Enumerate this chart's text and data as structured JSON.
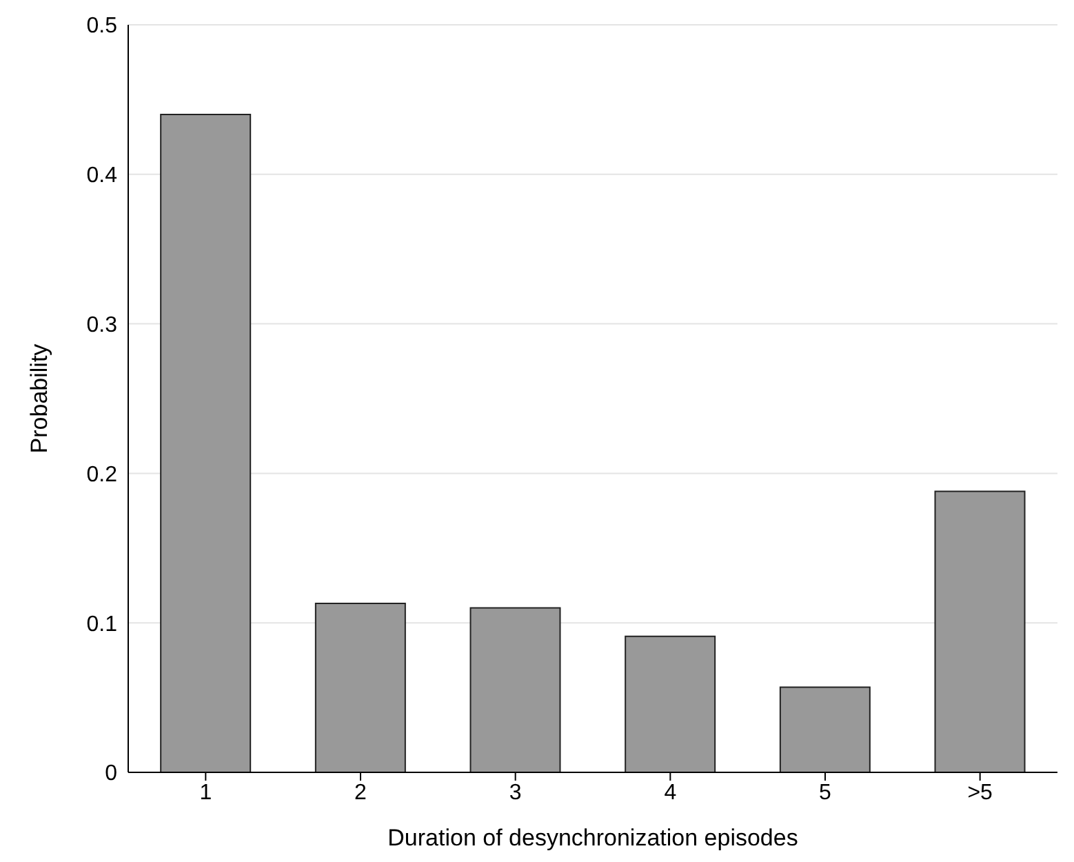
{
  "chart_data": {
    "type": "bar",
    "xlabel": "Duration of desynchronization episodes",
    "ylabel": "Probability",
    "categories": [
      "1",
      "2",
      "3",
      "4",
      "5",
      ">5"
    ],
    "values": [
      0.44,
      0.113,
      0.11,
      0.091,
      0.057,
      0.188
    ],
    "color": "#999999",
    "ylim": [
      0,
      0.5
    ],
    "yticks": [
      0,
      0.1,
      0.2,
      0.3,
      0.4,
      0.5
    ],
    "grid": "y",
    "legend": false
  }
}
